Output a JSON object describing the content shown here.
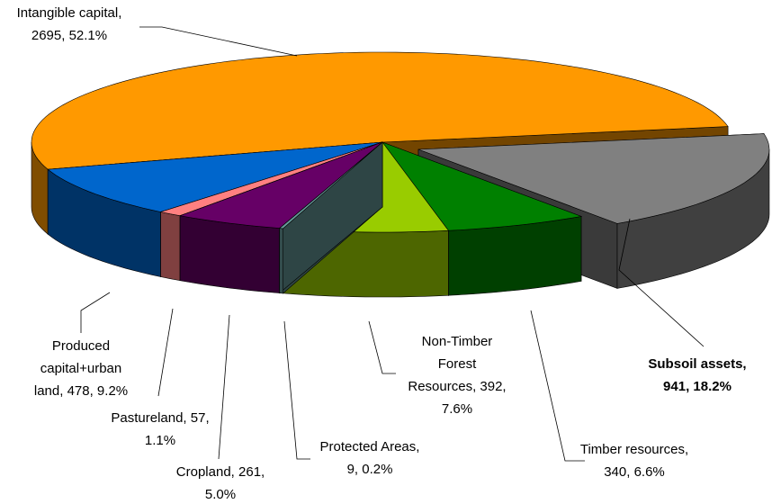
{
  "chart_data": {
    "type": "pie3d",
    "values": [
      941,
      340,
      392,
      9,
      261,
      57,
      478,
      2695
    ],
    "value_labels": [
      [
        "Subsoil assets,",
        "941, 18.2%"
      ],
      [
        "Timber resources,",
        "340, 6.6%"
      ],
      [
        "Non-Timber",
        "Forest",
        "Resources, 392,",
        "7.6%"
      ],
      [
        "Protected Areas,",
        "9, 0.2%"
      ],
      [
        "Cropland, 261,",
        "5.0%"
      ],
      [
        "Pastureland, 57,",
        "1.1%"
      ],
      [
        "Produced",
        "capital+urban",
        "land, 478, 9.2%"
      ],
      [
        "Intangible capital,",
        "2695, 52.1%"
      ]
    ],
    "colors": [
      "#808080",
      "#008000",
      "#99cc00",
      "#669999",
      "#660066",
      "#ff8080",
      "#0066cc",
      "#ff9900"
    ],
    "emphasized": 0
  }
}
